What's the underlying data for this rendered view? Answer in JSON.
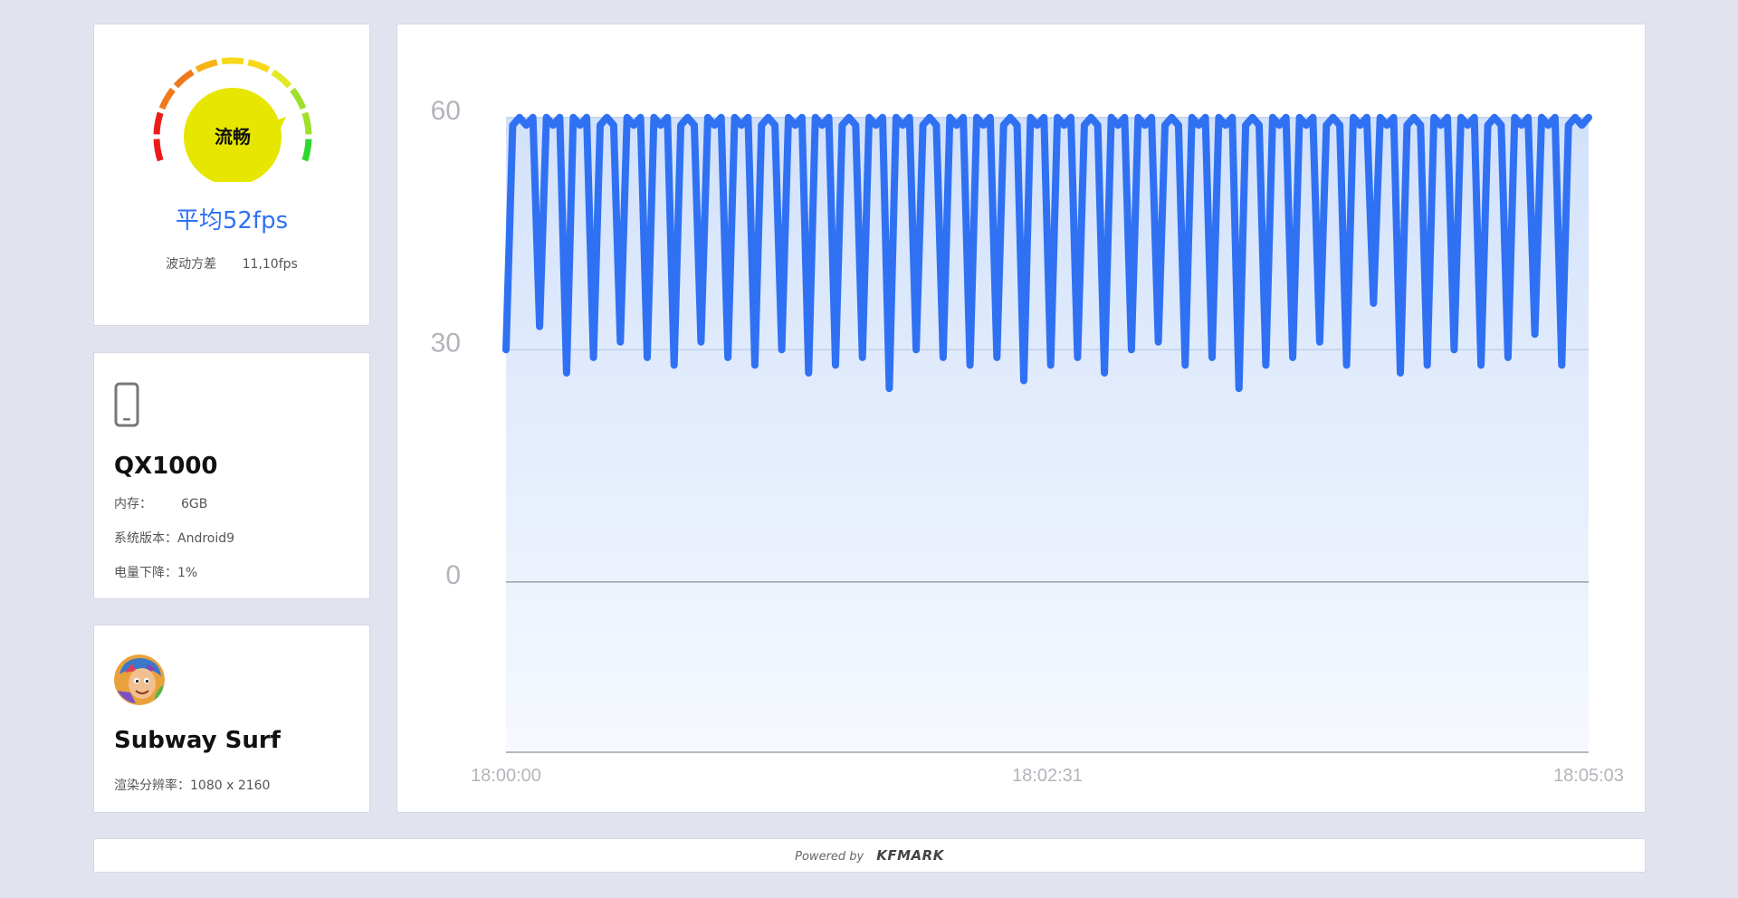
{
  "gauge": {
    "status_label": "流畅",
    "avg_fps_label": "平均52fps",
    "variance_label": "波动方差",
    "variance_value": "11,10fps",
    "colors": {
      "center": "#e6e600",
      "accent": "#2f71f2",
      "arc_stops": [
        "#ee1b1b",
        "#f07a1b",
        "#f5b316",
        "#f8d91a",
        "#e3e824",
        "#9ee02a",
        "#2fd82e"
      ]
    }
  },
  "device": {
    "icon": "phone-icon",
    "name": "QX1000",
    "memory_label": "内存：",
    "memory_value": "6GB",
    "os_label": "系统版本：",
    "os_value": "Android9",
    "battery_label": "电量下降：",
    "battery_value": "1%"
  },
  "app": {
    "icon": "app-avatar",
    "name": "Subway Surf",
    "resolution_label": "渲染分辨率：",
    "resolution_value": "1080 x 2160"
  },
  "footer": {
    "powered_by": "Powered by",
    "brand": "KFMARK"
  },
  "chart_data": {
    "type": "area",
    "ylim": [
      -22,
      65
    ],
    "yticks": [
      60,
      30,
      0
    ],
    "xtick_labels": [
      "18:00:00",
      "18:02:31",
      "18:05:03"
    ],
    "grid": true,
    "line_color": "#2f71f2",
    "series": [
      {
        "values": [
          30,
          59,
          60,
          59,
          60,
          33,
          60,
          59,
          60,
          27,
          60,
          59,
          60,
          29,
          59,
          60,
          59,
          31,
          60,
          59,
          60,
          29,
          60,
          59,
          60,
          28,
          59,
          60,
          59,
          31,
          60,
          59,
          60,
          29,
          60,
          59,
          60,
          28,
          59,
          60,
          59,
          30,
          60,
          59,
          60,
          27,
          60,
          59,
          60,
          28,
          59,
          60,
          59,
          29,
          60,
          59,
          60,
          25,
          60,
          59,
          60,
          30,
          59,
          60,
          59,
          29,
          60,
          59,
          60,
          28,
          60,
          59,
          60,
          29,
          59,
          60,
          59,
          26,
          60,
          59,
          60,
          28,
          60,
          59,
          60,
          29,
          59,
          60,
          59,
          27,
          60,
          59,
          60,
          30,
          60,
          59,
          60,
          31,
          59,
          60,
          59,
          28,
          60,
          59,
          60,
          29,
          60,
          59,
          60,
          25,
          59,
          60,
          59,
          28,
          60,
          59,
          60,
          29,
          60,
          59,
          60,
          31,
          59,
          60,
          59,
          28,
          60,
          59,
          60,
          36,
          60,
          59,
          60,
          27,
          59,
          60,
          59,
          28,
          60,
          59,
          60,
          30,
          60,
          59,
          60,
          28,
          59,
          60,
          59,
          29,
          60,
          59,
          60,
          32,
          60,
          59,
          60,
          28,
          59,
          60,
          59,
          60
        ]
      }
    ]
  }
}
